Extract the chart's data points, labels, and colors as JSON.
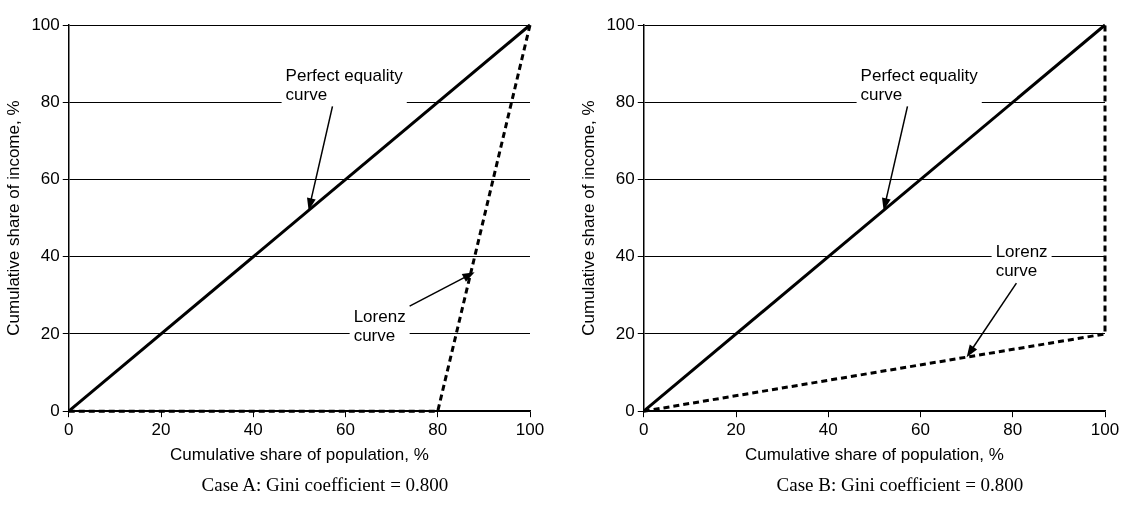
{
  "chart_data": [
    {
      "type": "line",
      "xlabel": "Cumulative share of population, %",
      "ylabel": "Cumulative share of income, %",
      "xlim": [
        0,
        100
      ],
      "ylim": [
        0,
        100
      ],
      "xticks": [
        0,
        20,
        40,
        60,
        80,
        100
      ],
      "yticks": [
        0,
        20,
        40,
        60,
        80,
        100
      ],
      "grid": "y",
      "marker": "none",
      "series": [
        {
          "color": "#000000",
          "line_style": "solid",
          "x": [
            0,
            100
          ],
          "values": [
            0,
            100
          ]
        },
        {
          "color": "#000000",
          "line_style": "dashed",
          "x": [
            0,
            80,
            100
          ],
          "values": [
            0,
            0,
            100
          ]
        }
      ],
      "annotations": [
        {
          "text": "Perfect equality\ncurve",
          "x": 52,
          "y": 52
        },
        {
          "text": "Lorenz\ncurve",
          "x": 88,
          "y": 36
        },
        "Case A: Gini coefficient = 0.800"
      ]
    },
    {
      "type": "line",
      "xlabel": "Cumulative share of population, %",
      "ylabel": "Cumulative share of income, %",
      "xlim": [
        0,
        100
      ],
      "ylim": [
        0,
        100
      ],
      "xticks": [
        0,
        20,
        40,
        60,
        80,
        100
      ],
      "yticks": [
        0,
        20,
        40,
        60,
        80,
        100
      ],
      "grid": "y",
      "marker": "none",
      "series": [
        {
          "color": "#000000",
          "line_style": "solid",
          "x": [
            0,
            100
          ],
          "values": [
            0,
            100
          ]
        },
        {
          "color": "#000000",
          "line_style": "dashed",
          "x": [
            0,
            100,
            100
          ],
          "values": [
            0,
            20,
            100
          ]
        }
      ],
      "annotations": [
        {
          "text": "Perfect equality\ncurve",
          "x": 52,
          "y": 52
        },
        {
          "text": "Lorenz\ncurve",
          "x": 70,
          "y": 14
        },
        "Case B: Gini coefficient = 0.800"
      ]
    }
  ]
}
